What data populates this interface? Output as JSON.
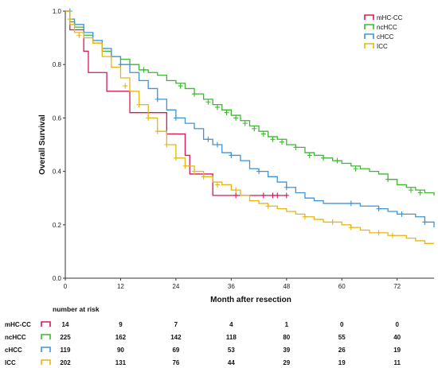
{
  "chart_data": {
    "type": "line",
    "title": "",
    "xlabel": "Month after resection",
    "ylabel": "Overall Survival",
    "xlim": [
      0,
      80
    ],
    "ylim": [
      0,
      1.0
    ],
    "x_ticks": [
      0,
      12,
      24,
      36,
      48,
      60,
      72
    ],
    "y_ticks": [
      0.0,
      0.2,
      0.4,
      0.6,
      0.8,
      1.0
    ],
    "y_tick_labels": [
      "0.0",
      "0.2",
      "0.4",
      "0.6",
      "0.8",
      "1.0"
    ],
    "grid": false,
    "legend_position": "top-right",
    "series": [
      {
        "name": "mHC-CC",
        "color": "#d6195a",
        "steps": [
          [
            0,
            1.0
          ],
          [
            1,
            0.93
          ],
          [
            3,
            0.93
          ],
          [
            4,
            0.85
          ],
          [
            5,
            0.77
          ],
          [
            9,
            0.77
          ],
          [
            9,
            0.7
          ],
          [
            14,
            0.7
          ],
          [
            14,
            0.62
          ],
          [
            22,
            0.62
          ],
          [
            22,
            0.54
          ],
          [
            26,
            0.54
          ],
          [
            26,
            0.46
          ],
          [
            27,
            0.46
          ],
          [
            27,
            0.39
          ],
          [
            32,
            0.39
          ],
          [
            32,
            0.31
          ],
          [
            48,
            0.31
          ]
        ],
        "censors": [
          [
            37,
            0.31
          ],
          [
            43,
            0.31
          ],
          [
            45,
            0.31
          ],
          [
            46,
            0.31
          ],
          [
            48,
            0.31
          ]
        ]
      },
      {
        "name": "ncHCC",
        "color": "#3cb82f",
        "steps": [
          [
            0,
            1.0
          ],
          [
            1,
            0.96
          ],
          [
            2,
            0.94
          ],
          [
            4,
            0.91
          ],
          [
            6,
            0.88
          ],
          [
            8,
            0.85
          ],
          [
            10,
            0.83
          ],
          [
            12,
            0.82
          ],
          [
            14,
            0.8
          ],
          [
            16,
            0.78
          ],
          [
            18,
            0.77
          ],
          [
            20,
            0.76
          ],
          [
            22,
            0.74
          ],
          [
            24,
            0.73
          ],
          [
            26,
            0.71
          ],
          [
            28,
            0.69
          ],
          [
            30,
            0.67
          ],
          [
            32,
            0.65
          ],
          [
            34,
            0.63
          ],
          [
            36,
            0.61
          ],
          [
            38,
            0.59
          ],
          [
            40,
            0.57
          ],
          [
            42,
            0.55
          ],
          [
            44,
            0.53
          ],
          [
            46,
            0.52
          ],
          [
            48,
            0.5
          ],
          [
            50,
            0.49
          ],
          [
            52,
            0.47
          ],
          [
            54,
            0.46
          ],
          [
            56,
            0.45
          ],
          [
            58,
            0.44
          ],
          [
            60,
            0.43
          ],
          [
            62,
            0.42
          ],
          [
            64,
            0.41
          ],
          [
            66,
            0.4
          ],
          [
            68,
            0.39
          ],
          [
            70,
            0.37
          ],
          [
            72,
            0.35
          ],
          [
            74,
            0.34
          ],
          [
            76,
            0.33
          ],
          [
            78,
            0.32
          ],
          [
            80,
            0.31
          ]
        ],
        "censors": [
          [
            10,
            0.83
          ],
          [
            17,
            0.78
          ],
          [
            25,
            0.72
          ],
          [
            28,
            0.69
          ],
          [
            31,
            0.66
          ],
          [
            33,
            0.64
          ],
          [
            35,
            0.62
          ],
          [
            37,
            0.6
          ],
          [
            39,
            0.58
          ],
          [
            41,
            0.56
          ],
          [
            43,
            0.54
          ],
          [
            45,
            0.52
          ],
          [
            47,
            0.51
          ],
          [
            50,
            0.49
          ],
          [
            53,
            0.46
          ],
          [
            56,
            0.45
          ],
          [
            59,
            0.44
          ],
          [
            63,
            0.41
          ],
          [
            70,
            0.37
          ],
          [
            75,
            0.33
          ],
          [
            77,
            0.32
          ]
        ]
      },
      {
        "name": "cHCC",
        "color": "#3e93d6",
        "steps": [
          [
            0,
            1.0
          ],
          [
            1,
            0.97
          ],
          [
            2,
            0.95
          ],
          [
            4,
            0.92
          ],
          [
            6,
            0.89
          ],
          [
            8,
            0.86
          ],
          [
            10,
            0.83
          ],
          [
            12,
            0.8
          ],
          [
            14,
            0.77
          ],
          [
            16,
            0.74
          ],
          [
            18,
            0.71
          ],
          [
            20,
            0.67
          ],
          [
            22,
            0.63
          ],
          [
            24,
            0.6
          ],
          [
            26,
            0.58
          ],
          [
            28,
            0.56
          ],
          [
            30,
            0.52
          ],
          [
            32,
            0.5
          ],
          [
            34,
            0.47
          ],
          [
            36,
            0.46
          ],
          [
            38,
            0.44
          ],
          [
            40,
            0.41
          ],
          [
            42,
            0.4
          ],
          [
            44,
            0.38
          ],
          [
            46,
            0.36
          ],
          [
            48,
            0.34
          ],
          [
            50,
            0.32
          ],
          [
            52,
            0.3
          ],
          [
            54,
            0.29
          ],
          [
            56,
            0.28
          ],
          [
            58,
            0.28
          ],
          [
            60,
            0.28
          ],
          [
            62,
            0.28
          ],
          [
            64,
            0.27
          ],
          [
            66,
            0.27
          ],
          [
            68,
            0.26
          ],
          [
            70,
            0.25
          ],
          [
            72,
            0.24
          ],
          [
            74,
            0.24
          ],
          [
            76,
            0.23
          ],
          [
            78,
            0.21
          ],
          [
            80,
            0.19
          ]
        ],
        "censors": [
          [
            1,
            1.0
          ],
          [
            12,
            0.8
          ],
          [
            20,
            0.67
          ],
          [
            24,
            0.6
          ],
          [
            31,
            0.52
          ],
          [
            33,
            0.5
          ],
          [
            36,
            0.46
          ],
          [
            42,
            0.4
          ],
          [
            48,
            0.34
          ],
          [
            62,
            0.28
          ],
          [
            68,
            0.26
          ],
          [
            73,
            0.24
          ],
          [
            78,
            0.21
          ]
        ]
      },
      {
        "name": "ICC",
        "color": "#e8b613",
        "steps": [
          [
            0,
            1.0
          ],
          [
            1,
            0.95
          ],
          [
            2,
            0.92
          ],
          [
            4,
            0.9
          ],
          [
            6,
            0.88
          ],
          [
            8,
            0.83
          ],
          [
            10,
            0.79
          ],
          [
            12,
            0.75
          ],
          [
            14,
            0.7
          ],
          [
            16,
            0.65
          ],
          [
            18,
            0.6
          ],
          [
            20,
            0.55
          ],
          [
            22,
            0.5
          ],
          [
            24,
            0.45
          ],
          [
            26,
            0.42
          ],
          [
            28,
            0.4
          ],
          [
            30,
            0.38
          ],
          [
            32,
            0.36
          ],
          [
            34,
            0.35
          ],
          [
            36,
            0.33
          ],
          [
            38,
            0.31
          ],
          [
            40,
            0.29
          ],
          [
            42,
            0.28
          ],
          [
            44,
            0.27
          ],
          [
            46,
            0.26
          ],
          [
            48,
            0.25
          ],
          [
            50,
            0.24
          ],
          [
            52,
            0.23
          ],
          [
            54,
            0.22
          ],
          [
            56,
            0.21
          ],
          [
            58,
            0.21
          ],
          [
            60,
            0.2
          ],
          [
            62,
            0.19
          ],
          [
            64,
            0.18
          ],
          [
            66,
            0.17
          ],
          [
            68,
            0.17
          ],
          [
            70,
            0.16
          ],
          [
            72,
            0.16
          ],
          [
            74,
            0.15
          ],
          [
            76,
            0.14
          ],
          [
            78,
            0.13
          ],
          [
            80,
            0.13
          ]
        ],
        "censors": [
          [
            1,
            0.97
          ],
          [
            3,
            0.91
          ],
          [
            13,
            0.72
          ],
          [
            16,
            0.65
          ],
          [
            18,
            0.6
          ],
          [
            20,
            0.55
          ],
          [
            22,
            0.5
          ],
          [
            24,
            0.45
          ],
          [
            26,
            0.42
          ],
          [
            28,
            0.4
          ],
          [
            30,
            0.38
          ],
          [
            33,
            0.35
          ],
          [
            37,
            0.33
          ],
          [
            44,
            0.27
          ],
          [
            52,
            0.23
          ],
          [
            58,
            0.21
          ],
          [
            62,
            0.19
          ],
          [
            68,
            0.17
          ],
          [
            71,
            0.16
          ]
        ]
      }
    ]
  },
  "risk_table": {
    "header": "number at risk",
    "rows": [
      {
        "name": "mHC-CC",
        "color": "#d6195a",
        "values": [
          "14",
          "9",
          "7",
          "4",
          "1",
          "0",
          "0"
        ]
      },
      {
        "name": "ncHCC",
        "color": "#3cb82f",
        "values": [
          "225",
          "162",
          "142",
          "118",
          "80",
          "55",
          "40"
        ]
      },
      {
        "name": "cHCC",
        "color": "#3e93d6",
        "values": [
          "119",
          "90",
          "69",
          "53",
          "39",
          "26",
          "19"
        ]
      },
      {
        "name": "ICC",
        "color": "#e8b613",
        "values": [
          "202",
          "131",
          "76",
          "44",
          "29",
          "19",
          "11"
        ]
      }
    ]
  }
}
